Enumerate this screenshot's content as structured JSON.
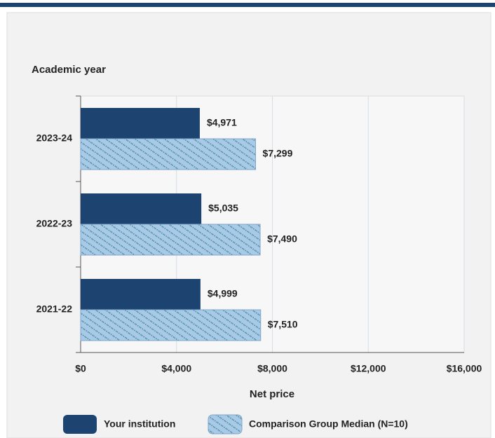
{
  "chart_data": {
    "type": "hbar",
    "y_axis_label": "Academic year",
    "x_axis_label": "Net price",
    "categories": [
      "2023-24",
      "2022-23",
      "2021-22"
    ],
    "series": [
      {
        "name": "Your institution",
        "color": "#1d4471",
        "values": [
          4971,
          5035,
          4999
        ],
        "value_labels": [
          "$4,971",
          "$5,035",
          "$4,999"
        ]
      },
      {
        "name": "Comparison Group Median (N=10)",
        "color": "#a9c9e8",
        "pattern": "#3e8a8a",
        "values": [
          7299,
          7490,
          7510
        ],
        "value_labels": [
          "$7,299",
          "$7,490",
          "$7,510"
        ]
      }
    ],
    "xlim": [
      0,
      16000
    ],
    "xticks": [
      {
        "value": 0,
        "label": "$0"
      },
      {
        "value": 4000,
        "label": "$4,000"
      },
      {
        "value": 8000,
        "label": "$8,000"
      },
      {
        "value": 12000,
        "label": "$12,000"
      },
      {
        "value": 16000,
        "label": "$16,000"
      }
    ],
    "grid": true,
    "legend": "bottom"
  }
}
